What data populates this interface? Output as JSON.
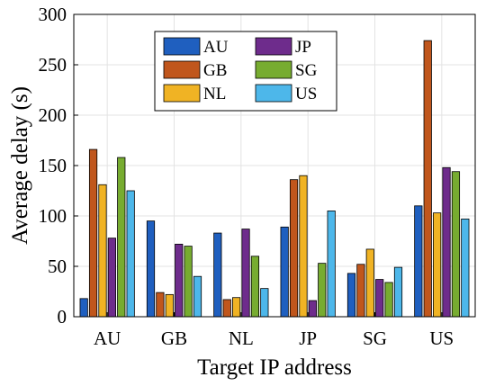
{
  "chart_data": {
    "type": "bar",
    "xlabel": "Target IP address",
    "ylabel": "Average delay (s)",
    "ylim": [
      0,
      300
    ],
    "yticks": [
      0,
      50,
      100,
      150,
      200,
      250,
      300
    ],
    "grid": true,
    "legend_position": "top-center",
    "categories": [
      "AU",
      "GB",
      "NL",
      "JP",
      "SG",
      "US"
    ],
    "series": [
      {
        "name": "AU",
        "color": "#1f5fbf",
        "values": [
          18,
          95,
          83,
          89,
          43,
          110
        ]
      },
      {
        "name": "GB",
        "color": "#c0561c",
        "values": [
          166,
          24,
          17,
          136,
          52,
          274
        ]
      },
      {
        "name": "NL",
        "color": "#f0b324",
        "values": [
          131,
          22,
          19,
          140,
          67,
          103
        ]
      },
      {
        "name": "JP",
        "color": "#6e2c8c",
        "values": [
          78,
          72,
          87,
          16,
          37,
          148
        ]
      },
      {
        "name": "SG",
        "color": "#77ac30",
        "values": [
          158,
          70,
          60,
          53,
          34,
          144
        ]
      },
      {
        "name": "US",
        "color": "#4db7ea",
        "values": [
          125,
          40,
          28,
          105,
          49,
          97
        ]
      }
    ]
  }
}
